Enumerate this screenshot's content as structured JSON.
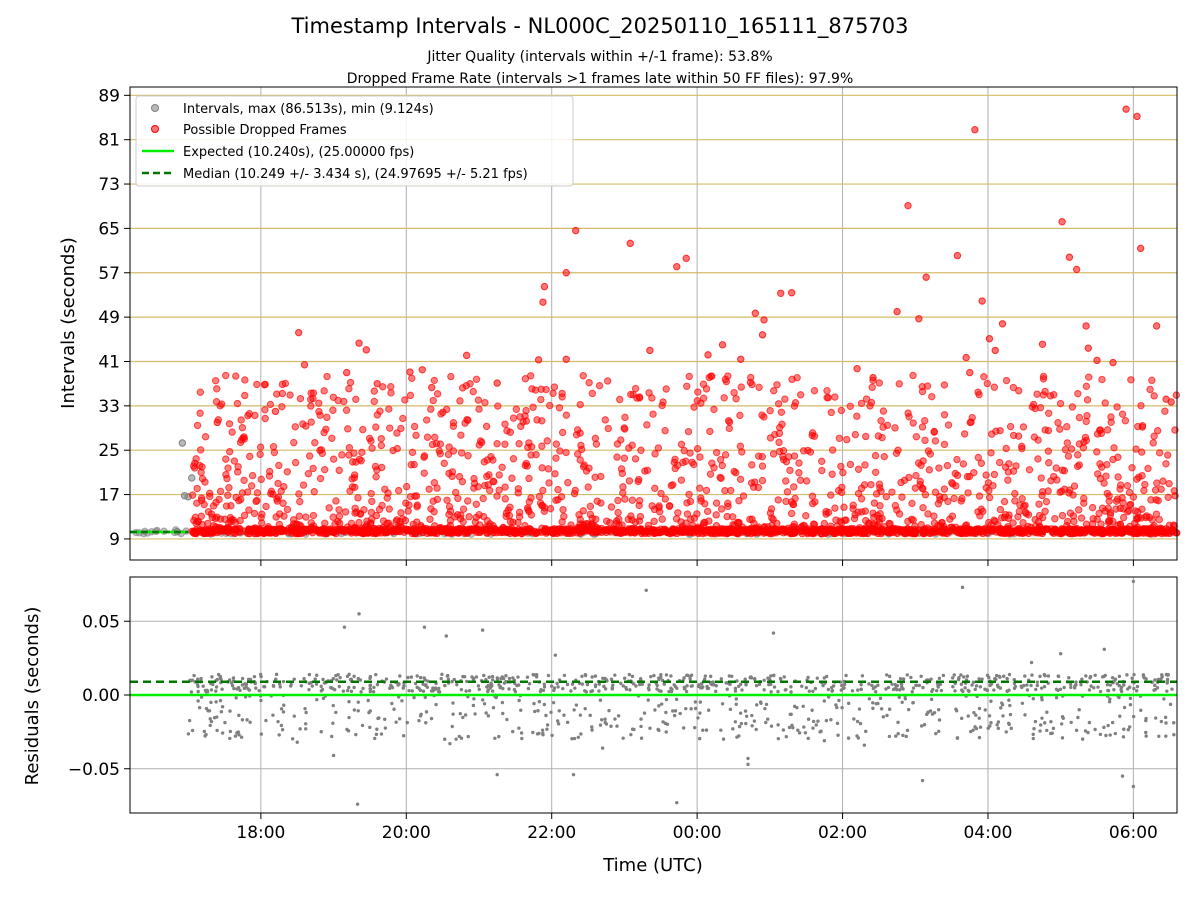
{
  "figure": {
    "title": "Timestamp Intervals - NL000C_20250110_165111_875703",
    "subtitle_1": "Jitter Quality (intervals within +/-1 frame): 53.8%",
    "subtitle_2": "Dropped Frame Rate (intervals >1 frames late within 50 FF files): 97.9%"
  },
  "chart_data": [
    {
      "type": "scatter",
      "ylabel": "Intervals (seconds)",
      "xlabel": "",
      "ylim": [
        5.2,
        90.5
      ],
      "yticks": [
        9,
        17,
        25,
        33,
        41,
        49,
        57,
        65,
        73,
        81,
        89
      ],
      "xlim_hours": [
        16.2,
        30.6
      ],
      "xtick_labels": [
        "18:00",
        "20:00",
        "22:00",
        "00:00",
        "02:00",
        "04:00",
        "06:00"
      ],
      "grid": true,
      "horizontal_guides_color": "#d4bc6a",
      "legend_position": "upper-left",
      "legend": [
        "Intervals, max (86.513s), min (9.124s)",
        "Possible Dropped Frames",
        "Expected (10.240s), (25.00000 fps)",
        "Median (10.249 +/- 3.434 s), (24.97695 +/- 5.21 fps)"
      ],
      "series": [
        {
          "name": "Intervals, max (86.513s), min (9.124s)",
          "color": "#808080",
          "baseline_y": 10.25,
          "x_range_hours": [
            16.2,
            30.6
          ],
          "outliers": [
            [
              16.92,
              26.3
            ],
            [
              16.95,
              16.8
            ],
            [
              17.0,
              16.6
            ],
            [
              17.05,
              20.0
            ],
            [
              16.85,
              10.3
            ]
          ]
        },
        {
          "name": "Possible Dropped Frames",
          "color": "#ff0000",
          "baseline_y": 10.4,
          "x_range_hours": [
            17.05,
            30.6
          ],
          "points": [
            [
              18.52,
              46.2
            ],
            [
              18.6,
              40.4
            ],
            [
              19.35,
              44.3
            ],
            [
              19.45,
              43.1
            ],
            [
              19.18,
              39.0
            ],
            [
              19.6,
              37.0
            ],
            [
              20.05,
              39.1
            ],
            [
              20.22,
              39.5
            ],
            [
              20.35,
              36.3
            ],
            [
              20.83,
              42.1
            ],
            [
              21.25,
              37.1
            ],
            [
              21.82,
              41.3
            ],
            [
              21.88,
              51.7
            ],
            [
              21.9,
              54.5
            ],
            [
              22.2,
              41.4
            ],
            [
              22.2,
              57.0
            ],
            [
              22.33,
              64.6
            ],
            [
              23.08,
              62.3
            ],
            [
              23.35,
              43.0
            ],
            [
              23.72,
              58.1
            ],
            [
              23.85,
              59.6
            ],
            [
              24.15,
              42.2
            ],
            [
              24.35,
              44.0
            ],
            [
              24.6,
              41.4
            ],
            [
              24.8,
              49.7
            ],
            [
              24.92,
              48.5
            ],
            [
              24.9,
              45.8
            ],
            [
              25.15,
              53.3
            ],
            [
              25.3,
              53.4
            ],
            [
              26.2,
              39.7
            ],
            [
              26.42,
              38.1
            ],
            [
              26.75,
              50.0
            ],
            [
              26.9,
              69.1
            ],
            [
              27.05,
              48.7
            ],
            [
              27.15,
              56.2
            ],
            [
              27.58,
              60.1
            ],
            [
              27.7,
              41.7
            ],
            [
              27.75,
              39.0
            ],
            [
              27.92,
              51.9
            ],
            [
              28.02,
              45.1
            ],
            [
              28.1,
              43.0
            ],
            [
              28.2,
              47.8
            ],
            [
              27.82,
              82.8
            ],
            [
              28.75,
              44.1
            ],
            [
              29.02,
              66.2
            ],
            [
              29.12,
              59.8
            ],
            [
              29.22,
              57.6
            ],
            [
              29.35,
              47.4
            ],
            [
              29.38,
              43.4
            ],
            [
              29.72,
              40.8
            ],
            [
              29.9,
              86.5
            ],
            [
              30.05,
              85.2
            ],
            [
              30.1,
              61.4
            ],
            [
              30.32,
              47.4
            ],
            [
              30.45,
              34.2
            ],
            [
              30.52,
              33.7
            ],
            [
              29.5,
              41.2
            ],
            [
              18.2,
              32.0
            ],
            [
              17.4,
              30.0
            ]
          ]
        },
        {
          "name": "Expected (10.240s), (25.00000 fps)",
          "style": "solid",
          "color": "#00ee00",
          "y": 10.24
        },
        {
          "name": "Median (10.249 +/- 3.434 s), (24.97695 +/- 5.21 fps)",
          "style": "dashed",
          "color": "#007700",
          "y": 10.249
        }
      ]
    },
    {
      "type": "scatter",
      "ylabel": "Residuals (seconds)",
      "xlabel": "Time (UTC)",
      "ylim": [
        -0.08,
        0.08
      ],
      "yticks": [
        -0.05,
        0.0,
        0.05
      ],
      "ytick_labels": [
        "−0.05",
        "0.00",
        "0.05"
      ],
      "xlim_hours": [
        16.2,
        30.6
      ],
      "xtick_labels": [
        "18:00",
        "20:00",
        "22:00",
        "00:00",
        "02:00",
        "04:00",
        "06:00"
      ],
      "grid": true,
      "series": [
        {
          "name": "Residuals",
          "color": "#808080",
          "x_range_hours": [
            17.0,
            30.6
          ],
          "points": [
            [
              19.35,
              0.055
            ],
            [
              19.15,
              0.046
            ],
            [
              20.25,
              0.046
            ],
            [
              20.55,
              0.04
            ],
            [
              21.05,
              0.044
            ],
            [
              23.3,
              0.071
            ],
            [
              30.0,
              0.077
            ],
            [
              27.65,
              0.073
            ],
            [
              19.33,
              -0.074
            ],
            [
              23.72,
              -0.073
            ],
            [
              27.1,
              -0.058
            ],
            [
              29.85,
              -0.055
            ],
            [
              30.0,
              -0.062
            ],
            [
              21.25,
              -0.054
            ],
            [
              22.3,
              -0.054
            ],
            [
              24.7,
              -0.043
            ],
            [
              24.7,
              -0.047
            ],
            [
              25.05,
              0.042
            ],
            [
              19.0,
              -0.041
            ],
            [
              18.5,
              -0.032
            ],
            [
              17.7,
              -0.027
            ],
            [
              20.6,
              -0.033
            ],
            [
              22.7,
              -0.036
            ],
            [
              25.75,
              -0.031
            ],
            [
              26.3,
              -0.034
            ],
            [
              29.6,
              0.031
            ],
            [
              30.35,
              -0.028
            ],
            [
              29.0,
              0.028
            ],
            [
              22.05,
              0.027
            ],
            [
              28.6,
              0.022
            ]
          ]
        },
        {
          "name": "Expected",
          "style": "solid",
          "color": "#00ee00",
          "y": 0.0
        },
        {
          "name": "Median",
          "style": "dashed",
          "color": "#007700",
          "y": 0.009
        }
      ]
    }
  ]
}
